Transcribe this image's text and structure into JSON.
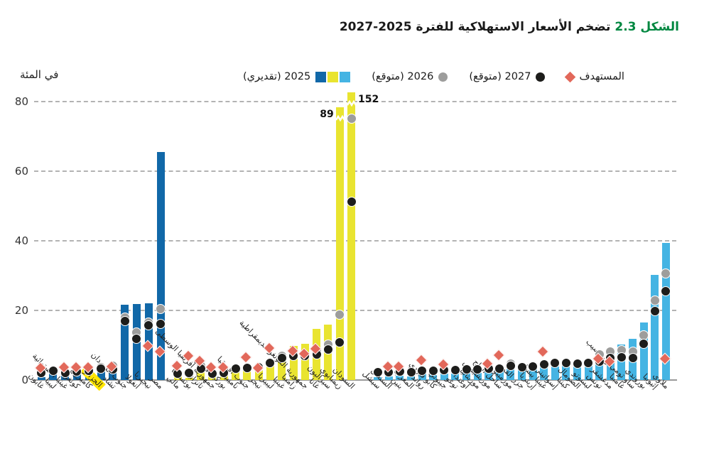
{
  "title": {
    "figure_label": "الشكل 2.3",
    "text": "تضخم الأسعار الاستهلاكية للفترة 2025-2027"
  },
  "colors": {
    "blue": "#1168a8",
    "yellow": "#e9e430",
    "lightblue": "#45b4e3",
    "red": "#e2685a",
    "gray": "#9d9d9c",
    "black": "#1d1d1b",
    "green": "#008740",
    "highlight": "#ffe600"
  },
  "chart_data": {
    "type": "bar",
    "title": "تضخم الأسعار الاستهلاكية للفترة 2025-2027",
    "ylabel": "في المئة",
    "ylim": [
      0,
      85
    ],
    "yticks": [
      0,
      20,
      40,
      60,
      80
    ],
    "grid": "dashed horizontal",
    "legend_position": "top",
    "series_legend": [
      {
        "label": "المستهدف",
        "marker": "diamond",
        "color_key": "red"
      },
      {
        "label": "2027 (متوقع)",
        "marker": "dot",
        "color_key": "black"
      },
      {
        "label": "2026 (متوقع)",
        "marker": "dot",
        "color_key": "gray"
      },
      {
        "label": "2025 (تقديري)",
        "marker": "bars",
        "color_keys": [
          "blue",
          "yellow",
          "lightblue"
        ]
      }
    ],
    "note_broken_bars": [
      {
        "country": "زيمبابوي",
        "actual": "89"
      },
      {
        "country": "السودان",
        "actual": "152"
      }
    ],
    "groups": [
      {
        "name": "group-1",
        "color_key": "blue",
        "countries": [
          {
            "name": "غابون",
            "b2025": 0.9,
            "e2027": 2.0,
            "target": 3.2
          },
          {
            "name": "ليبيا",
            "b2025": 1.8,
            "e2027": 2.6
          },
          {
            "name": "غينيا الاستوائية",
            "b2025": 1.6,
            "e2027": 2.1,
            "target": 3.3
          },
          {
            "name": "كونغو",
            "b2025": 2.2,
            "e2027": 2.4,
            "target": 3.4
          },
          {
            "name": "كاميرون",
            "b2025": 2.3,
            "e2027": 2.6,
            "target": 3.4
          },
          {
            "name": "الجزائر",
            "b2025": 2.9,
            "e2026": 3.7,
            "e2027": 3.3,
            "highlight": true
          },
          {
            "name": "تشاد",
            "b2025": 2.9,
            "e2026": 4.0,
            "e2027": 3.1,
            "target": 3.5
          },
          {
            "name": "جنوب السودان",
            "b2025": 21.6,
            "e2026": 17.9,
            "e2027": 17.0
          },
          {
            "name": "أنغولا",
            "b2025": 21.8,
            "e2026": 13.7,
            "e2027": 11.9
          },
          {
            "name": "نيجيريا",
            "b2025": 22.0,
            "e2026": 16.6,
            "e2027": 15.7,
            "target": 9.5
          },
          {
            "name": "مصر",
            "b2025": 65.5,
            "e2026": 20.4,
            "e2027": 16.2,
            "target": 7.8
          }
        ]
      },
      {
        "name": "group-2",
        "color_key": "yellow",
        "countries": [
          {
            "name": "مالي",
            "b2025": 1.4,
            "e2027": 1.8,
            "target": 3.7
          },
          {
            "name": "بوتسوانا",
            "b2025": 0.6,
            "e2027": 2.0,
            "target": 6.6
          },
          {
            "name": "تانزانيا",
            "b2025": 3.1,
            "e2026": 4.1,
            "e2027": 3.3,
            "target": 5.3
          },
          {
            "name": "جمهورية أفريقيا الوسطى",
            "b2025": 1.8,
            "e2027": 1.9,
            "target": 3.3
          },
          {
            "name": "بوركينا فاسو",
            "b2025": 1.9,
            "e2027": 2.0,
            "target": 3.4
          },
          {
            "name": "ناميبيا",
            "b2025": 2.4,
            "e2026": 3.5,
            "e2027": 3.3
          },
          {
            "name": "جنوب أفريقيا",
            "b2025": 3.0,
            "e2027": 3.4,
            "target": 6.2
          },
          {
            "name": "نيجر",
            "b2025": 3.5,
            "e2026": 3.9,
            "e2027": 3.6,
            "target": 3.2
          },
          {
            "name": "ليبيريا",
            "b2025": 4.4,
            "e2026": 5.2,
            "e2027": 4.9,
            "target": 8.8
          },
          {
            "name": "غينيا",
            "b2025": 7.0,
            "e2026": 6.9,
            "e2027": 6.3
          },
          {
            "name": "زامبيا",
            "b2025": 9.8,
            "e2026": 7.5,
            "e2027": 7.0,
            "target": 8.0
          },
          {
            "name": "جمهورية الكونغو الديمقراطية",
            "b2025": 10.4,
            "e2027": 6.9,
            "target": 7.2
          },
          {
            "name": "غانا",
            "b2025": 14.7,
            "e2026": 8.2,
            "e2027": 7.3,
            "target": 8.7
          },
          {
            "name": "سيراليون",
            "b2025": 15.9,
            "e2026": 10.2,
            "e2027": 8.8
          },
          {
            "name": "زيمبابوي",
            "b2025": 89,
            "display": 78.4,
            "actual": "89",
            "label_side": "left",
            "break": true,
            "e2026": 18.8,
            "e2027": 10.9
          },
          {
            "name": "السودان",
            "b2025": 152,
            "display": 82.6,
            "actual": "152",
            "label_side": "right",
            "break": true,
            "e2026": 75.1,
            "e2027": 51.2
          }
        ]
      },
      {
        "name": "group-3",
        "color_key": "lightblue",
        "countries": [
          {
            "name": "سيشل",
            "b2025": 0.9,
            "e2027": 2.2
          },
          {
            "name": "السنغال",
            "b2025": 1.0,
            "e2027": 2.3,
            "target": 3.6
          },
          {
            "name": "بنين",
            "b2025": 1.2,
            "e2027": 2.4,
            "target": 3.6
          },
          {
            "name": "المغرب",
            "b2025": 1.1,
            "e2027": 2.2
          },
          {
            "name": "رواندا",
            "b2025": 1.8,
            "e2027": 2.6,
            "target": 5.4
          },
          {
            "name": "كابو فيردي",
            "b2025": 1.5,
            "e2027": 2.7
          },
          {
            "name": "جيبوتي",
            "b2025": 1.8,
            "e2027": 2.8,
            "target": 4.2
          },
          {
            "name": "توغو",
            "b2025": 1.9,
            "e2027": 2.8
          },
          {
            "name": "أوغندا",
            "b2025": 2.2,
            "e2027": 3.0
          },
          {
            "name": "موريتانيا",
            "b2025": 2.1,
            "e2027": 3.0
          },
          {
            "name": "موريشيوس",
            "b2025": 2.3,
            "e2027": 3.2,
            "target": 4.4
          },
          {
            "name": "ساحل العاج",
            "b2025": 2.5,
            "e2027": 3.3,
            "target": 6.8
          },
          {
            "name": "موزمبيق",
            "b2025": 3.3,
            "e2026": 4.6,
            "e2027": 4.1
          },
          {
            "name": "جزر القمر",
            "b2025": 2.8,
            "e2027": 3.7
          },
          {
            "name": "إريتريا",
            "b2025": 3.0,
            "e2027": 3.8
          },
          {
            "name": "غينيا بيساو",
            "b2025": 3.6,
            "e2027": 4.5,
            "target": 7.9
          },
          {
            "name": "إسواتيني",
            "b2025": 3.9,
            "e2027": 4.8
          },
          {
            "name": "كينيا",
            "b2025": 4.1,
            "e2027": 4.8
          },
          {
            "name": "الصومال",
            "b2025": 4.5,
            "e2027": 4.6
          },
          {
            "name": "ليسوتو",
            "b2025": 4.7,
            "e2027": 5.0
          },
          {
            "name": "تونس",
            "b2025": 6.5,
            "e2026": 7.4,
            "e2027": 5.3,
            "target": 5.8
          },
          {
            "name": "مدغشقر",
            "b2025": 7.5,
            "e2026": 8.1,
            "e2027": 6.4,
            "target": 5.1
          },
          {
            "name": "غامبيا",
            "b2025": 10.2,
            "e2026": 8.5,
            "e2027": 6.5
          },
          {
            "name": "ساو تومي وبرينسيب",
            "b2025": 11.9,
            "e2026": 8.2,
            "e2027": 6.3
          },
          {
            "name": "بوروندي",
            "b2025": 16.5,
            "e2026": 12.9,
            "e2027": 10.4
          },
          {
            "name": "إثيوبيا",
            "b2025": 30.3,
            "e2026": 22.9,
            "e2027": 19.8
          },
          {
            "name": "ملاوي",
            "b2025": 39.4,
            "e2026": 30.6,
            "e2027": 25.5,
            "target": 5.8
          }
        ]
      }
    ]
  }
}
